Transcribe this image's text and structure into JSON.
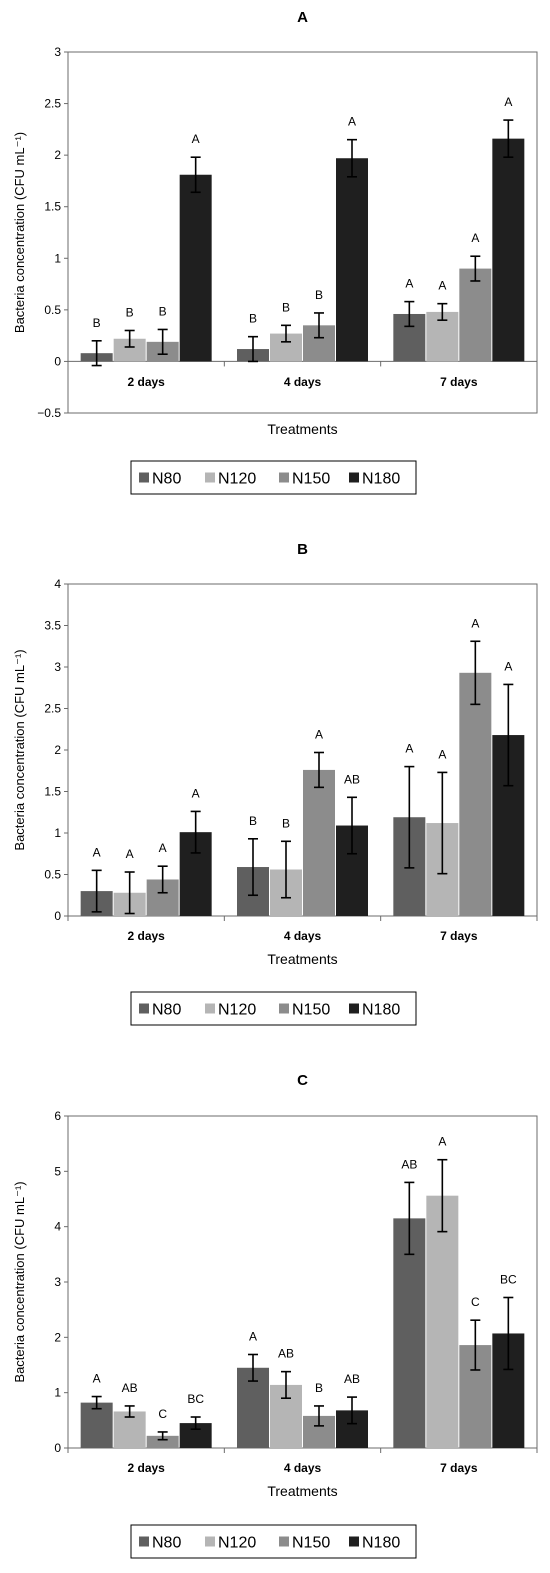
{
  "chart_data": [
    {
      "type": "bar",
      "title": "A",
      "xlabel": "Treatments",
      "ylabel": "Bacteria concentration (CFU mL⁻¹)",
      "ylim": [
        -0.5,
        3
      ],
      "yticks": [
        -0.5,
        0,
        0.5,
        1,
        1.5,
        2,
        2.5,
        3
      ],
      "ytick_labels": [
        "−0.5",
        "0",
        "0.5",
        "1",
        "1.5",
        "2",
        "2.5",
        "3"
      ],
      "categories": [
        "2 days",
        "4 days",
        "7 days"
      ],
      "series": [
        {
          "name": "N80",
          "color": "#5f5f5f",
          "values": [
            0.08,
            0.12,
            0.46
          ],
          "errors": [
            0.12,
            0.12,
            0.12
          ],
          "letters": [
            "B",
            "B",
            "A"
          ]
        },
        {
          "name": "N120",
          "color": "#b5b5b5",
          "values": [
            0.22,
            0.27,
            0.48
          ],
          "errors": [
            0.08,
            0.08,
            0.08
          ],
          "letters": [
            "B",
            "B",
            "A"
          ]
        },
        {
          "name": "N150",
          "color": "#8c8c8c",
          "values": [
            0.19,
            0.35,
            0.9
          ],
          "errors": [
            0.12,
            0.12,
            0.12
          ],
          "letters": [
            "B",
            "B",
            "A"
          ]
        },
        {
          "name": "N180",
          "color": "#1f1f1f",
          "values": [
            1.81,
            1.97,
            2.16
          ],
          "errors": [
            0.17,
            0.18,
            0.18
          ],
          "letters": [
            "A",
            "A",
            "A"
          ]
        }
      ],
      "legend_position": "bottom",
      "grid": false
    },
    {
      "type": "bar",
      "title": "B",
      "xlabel": "Treatments",
      "ylabel": "Bacteria concentration (CFU mL⁻¹)",
      "ylim": [
        0,
        4
      ],
      "yticks": [
        0,
        0.5,
        1,
        1.5,
        2,
        2.5,
        3,
        3.5,
        4
      ],
      "ytick_labels": [
        "0",
        "0.5",
        "1",
        "1.5",
        "2",
        "2.5",
        "3",
        "3.5",
        "4"
      ],
      "categories": [
        "2 days",
        "4 days",
        "7 days"
      ],
      "series": [
        {
          "name": "N80",
          "color": "#5f5f5f",
          "values": [
            0.3,
            0.59,
            1.19
          ],
          "errors": [
            0.25,
            0.34,
            0.61
          ],
          "letters": [
            "A",
            "B",
            "A"
          ]
        },
        {
          "name": "N120",
          "color": "#b5b5b5",
          "values": [
            0.28,
            0.56,
            1.12
          ],
          "errors": [
            0.25,
            0.34,
            0.61
          ],
          "letters": [
            "A",
            "B",
            "A"
          ]
        },
        {
          "name": "N150",
          "color": "#8c8c8c",
          "values": [
            0.44,
            1.76,
            2.93
          ],
          "errors": [
            0.16,
            0.21,
            0.38
          ],
          "letters": [
            "A",
            "A",
            "A"
          ]
        },
        {
          "name": "N180",
          "color": "#1f1f1f",
          "values": [
            1.01,
            1.09,
            2.18
          ],
          "errors": [
            0.25,
            0.34,
            0.61
          ],
          "letters": [
            "A",
            "AB",
            "A"
          ]
        }
      ],
      "legend_position": "bottom",
      "grid": false
    },
    {
      "type": "bar",
      "title": "C",
      "xlabel": "Treatments",
      "ylabel": "Bacteria concentration (CFU mL⁻¹)",
      "ylim": [
        0,
        6
      ],
      "yticks": [
        0,
        1,
        2,
        3,
        4,
        5,
        6
      ],
      "ytick_labels": [
        "0",
        "1",
        "2",
        "3",
        "4",
        "5",
        "6"
      ],
      "categories": [
        "2 days",
        "4 days",
        "7 days"
      ],
      "series": [
        {
          "name": "N80",
          "color": "#5f5f5f",
          "values": [
            0.82,
            1.45,
            4.15
          ],
          "errors": [
            0.11,
            0.24,
            0.65
          ],
          "letters": [
            "A",
            "A",
            "AB"
          ]
        },
        {
          "name": "N120",
          "color": "#b5b5b5",
          "values": [
            0.66,
            1.14,
            4.56
          ],
          "errors": [
            0.1,
            0.24,
            0.65
          ],
          "letters": [
            "AB",
            "AB",
            "A"
          ]
        },
        {
          "name": "N150",
          "color": "#8c8c8c",
          "values": [
            0.22,
            0.58,
            1.86
          ],
          "errors": [
            0.07,
            0.18,
            0.45
          ],
          "letters": [
            "C",
            "B",
            "C"
          ]
        },
        {
          "name": "N180",
          "color": "#1f1f1f",
          "values": [
            0.45,
            0.68,
            2.07
          ],
          "errors": [
            0.11,
            0.24,
            0.65
          ],
          "letters": [
            "BC",
            "AB",
            "BC"
          ]
        }
      ],
      "legend_position": "bottom",
      "grid": false
    }
  ]
}
